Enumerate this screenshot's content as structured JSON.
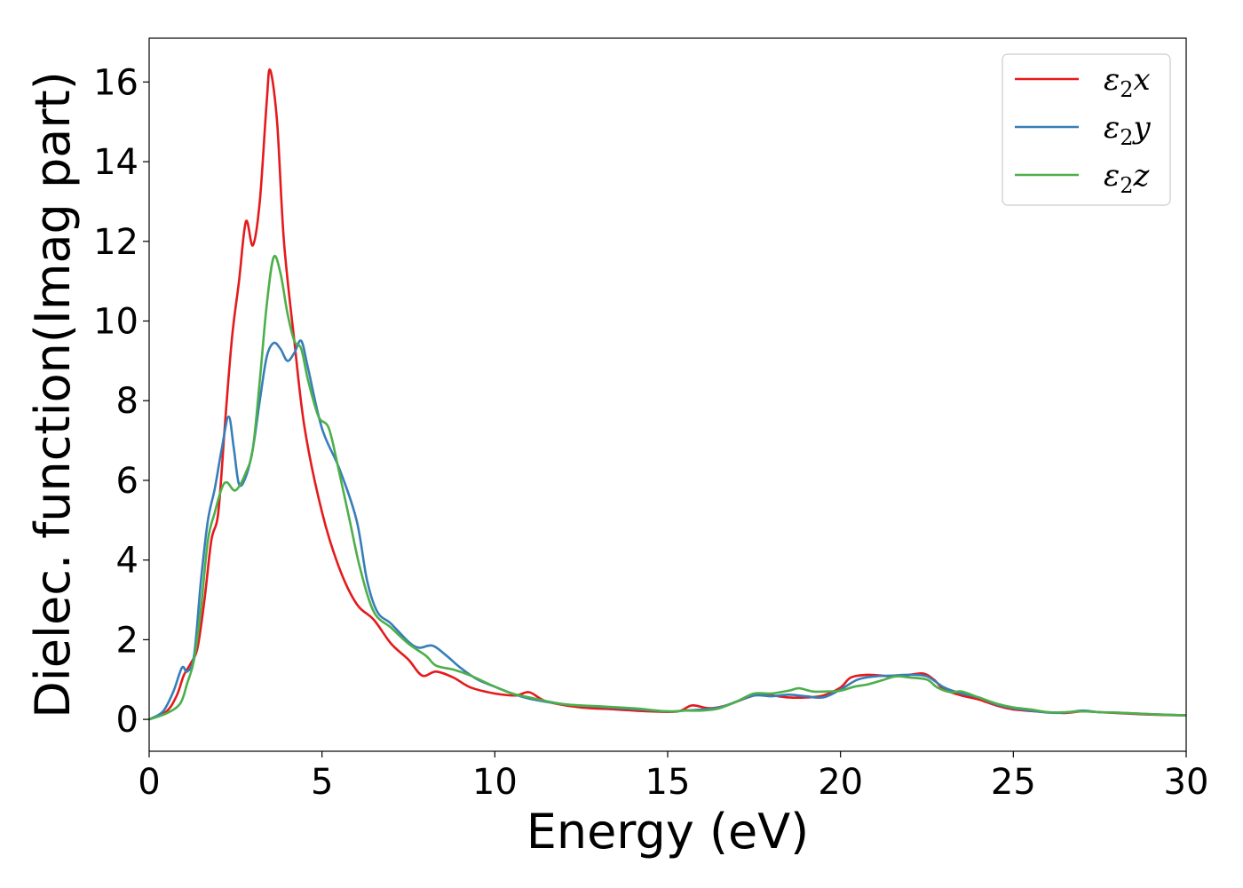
{
  "chart_data": {
    "type": "line",
    "title": "",
    "xlabel": "Energy (eV)",
    "ylabel": "Dielec. function(Imag part)",
    "xlim": [
      0,
      30
    ],
    "ylim": [
      -0.8,
      17.1
    ],
    "xticks": [
      0,
      5,
      10,
      15,
      20,
      25,
      30
    ],
    "yticks": [
      0,
      2,
      4,
      6,
      8,
      10,
      12,
      14,
      16
    ],
    "grid": false,
    "legend_position": "top-right",
    "series": [
      {
        "name": "ε2x",
        "symbol": "ε",
        "subscript": "2",
        "suffix": "x",
        "color": "#e41a1c",
        "points": [
          [
            0,
            0
          ],
          [
            0.5,
            0.2
          ],
          [
            0.8,
            0.6
          ],
          [
            1.0,
            1.1
          ],
          [
            1.2,
            1.4
          ],
          [
            1.4,
            1.8
          ],
          [
            1.6,
            3.0
          ],
          [
            1.8,
            4.5
          ],
          [
            2.0,
            5.2
          ],
          [
            2.2,
            7.5
          ],
          [
            2.4,
            9.6
          ],
          [
            2.6,
            11.0
          ],
          [
            2.8,
            12.5
          ],
          [
            3.0,
            11.9
          ],
          [
            3.2,
            13.0
          ],
          [
            3.4,
            15.5
          ],
          [
            3.5,
            16.3
          ],
          [
            3.7,
            15.0
          ],
          [
            3.9,
            12.0
          ],
          [
            4.2,
            9.5
          ],
          [
            4.5,
            7.3
          ],
          [
            5.0,
            5.2
          ],
          [
            5.5,
            3.8
          ],
          [
            6.0,
            2.9
          ],
          [
            6.5,
            2.5
          ],
          [
            7.0,
            1.9
          ],
          [
            7.5,
            1.5
          ],
          [
            7.9,
            1.1
          ],
          [
            8.3,
            1.2
          ],
          [
            8.8,
            1.05
          ],
          [
            9.3,
            0.8
          ],
          [
            10.0,
            0.65
          ],
          [
            10.6,
            0.6
          ],
          [
            11.0,
            0.68
          ],
          [
            11.5,
            0.45
          ],
          [
            12.5,
            0.3
          ],
          [
            13.5,
            0.25
          ],
          [
            14.5,
            0.2
          ],
          [
            15.3,
            0.2
          ],
          [
            15.7,
            0.35
          ],
          [
            16.2,
            0.28
          ],
          [
            16.7,
            0.35
          ],
          [
            17.5,
            0.6
          ],
          [
            18.0,
            0.6
          ],
          [
            18.5,
            0.55
          ],
          [
            19.0,
            0.55
          ],
          [
            19.5,
            0.6
          ],
          [
            20.0,
            0.8
          ],
          [
            20.3,
            1.05
          ],
          [
            20.8,
            1.12
          ],
          [
            21.5,
            1.08
          ],
          [
            22.0,
            1.12
          ],
          [
            22.4,
            1.15
          ],
          [
            22.7,
            1.0
          ],
          [
            23.0,
            0.75
          ],
          [
            23.5,
            0.6
          ],
          [
            24.0,
            0.5
          ],
          [
            24.5,
            0.35
          ],
          [
            25.0,
            0.25
          ],
          [
            26.0,
            0.18
          ],
          [
            26.5,
            0.16
          ],
          [
            27.0,
            0.2
          ],
          [
            27.5,
            0.18
          ],
          [
            28.0,
            0.16
          ],
          [
            29.0,
            0.12
          ],
          [
            30.0,
            0.1
          ]
        ]
      },
      {
        "name": "ε2y",
        "symbol": "ε",
        "subscript": "2",
        "suffix": "y",
        "color": "#377eb8",
        "points": [
          [
            0,
            0
          ],
          [
            0.4,
            0.2
          ],
          [
            0.7,
            0.7
          ],
          [
            0.95,
            1.3
          ],
          [
            1.1,
            1.2
          ],
          [
            1.3,
            1.6
          ],
          [
            1.5,
            3.5
          ],
          [
            1.7,
            5.0
          ],
          [
            1.9,
            5.8
          ],
          [
            2.1,
            6.8
          ],
          [
            2.3,
            7.6
          ],
          [
            2.45,
            6.8
          ],
          [
            2.6,
            5.9
          ],
          [
            2.8,
            6.1
          ],
          [
            3.0,
            6.8
          ],
          [
            3.2,
            8.0
          ],
          [
            3.4,
            9.1
          ],
          [
            3.6,
            9.45
          ],
          [
            3.8,
            9.3
          ],
          [
            4.0,
            9.0
          ],
          [
            4.2,
            9.2
          ],
          [
            4.4,
            9.5
          ],
          [
            4.6,
            8.8
          ],
          [
            5.0,
            7.3
          ],
          [
            5.5,
            6.3
          ],
          [
            6.0,
            5.0
          ],
          [
            6.3,
            3.5
          ],
          [
            6.6,
            2.7
          ],
          [
            7.0,
            2.4
          ],
          [
            7.5,
            1.95
          ],
          [
            7.8,
            1.8
          ],
          [
            8.2,
            1.85
          ],
          [
            8.6,
            1.6
          ],
          [
            9.0,
            1.3
          ],
          [
            9.5,
            1.0
          ],
          [
            10.0,
            0.82
          ],
          [
            10.5,
            0.65
          ],
          [
            11.0,
            0.52
          ],
          [
            12.0,
            0.38
          ],
          [
            13.0,
            0.32
          ],
          [
            14.0,
            0.26
          ],
          [
            15.0,
            0.2
          ],
          [
            15.5,
            0.22
          ],
          [
            16.0,
            0.25
          ],
          [
            16.5,
            0.3
          ],
          [
            17.0,
            0.45
          ],
          [
            17.5,
            0.6
          ],
          [
            18.0,
            0.58
          ],
          [
            18.5,
            0.62
          ],
          [
            19.0,
            0.58
          ],
          [
            19.5,
            0.55
          ],
          [
            20.0,
            0.75
          ],
          [
            20.5,
            1.0
          ],
          [
            21.0,
            1.08
          ],
          [
            21.5,
            1.1
          ],
          [
            22.0,
            1.12
          ],
          [
            22.5,
            1.08
          ],
          [
            23.0,
            0.8
          ],
          [
            23.5,
            0.65
          ],
          [
            24.0,
            0.55
          ],
          [
            24.5,
            0.38
          ],
          [
            25.0,
            0.28
          ],
          [
            25.5,
            0.22
          ],
          [
            26.0,
            0.17
          ],
          [
            26.5,
            0.17
          ],
          [
            27.0,
            0.22
          ],
          [
            27.5,
            0.18
          ],
          [
            28.0,
            0.17
          ],
          [
            29.0,
            0.13
          ],
          [
            30.0,
            0.1
          ]
        ]
      },
      {
        "name": "ε2z",
        "symbol": "ε",
        "subscript": "2",
        "suffix": "z",
        "color": "#4daf4a",
        "points": [
          [
            0,
            0
          ],
          [
            0.5,
            0.15
          ],
          [
            0.9,
            0.4
          ],
          [
            1.1,
            0.9
          ],
          [
            1.3,
            1.5
          ],
          [
            1.5,
            2.8
          ],
          [
            1.7,
            4.5
          ],
          [
            1.9,
            5.2
          ],
          [
            2.1,
            5.8
          ],
          [
            2.25,
            5.95
          ],
          [
            2.5,
            5.75
          ],
          [
            2.8,
            6.2
          ],
          [
            3.0,
            6.8
          ],
          [
            3.2,
            8.5
          ],
          [
            3.4,
            10.4
          ],
          [
            3.6,
            11.6
          ],
          [
            3.8,
            11.2
          ],
          [
            4.0,
            10.2
          ],
          [
            4.2,
            9.5
          ],
          [
            4.4,
            9.3
          ],
          [
            4.6,
            8.5
          ],
          [
            4.9,
            7.6
          ],
          [
            5.2,
            7.3
          ],
          [
            5.5,
            6.2
          ],
          [
            5.8,
            5.0
          ],
          [
            6.1,
            3.8
          ],
          [
            6.5,
            2.7
          ],
          [
            7.0,
            2.3
          ],
          [
            7.5,
            1.9
          ],
          [
            8.0,
            1.6
          ],
          [
            8.3,
            1.35
          ],
          [
            8.8,
            1.25
          ],
          [
            9.3,
            1.1
          ],
          [
            10.0,
            0.82
          ],
          [
            10.5,
            0.65
          ],
          [
            11.0,
            0.55
          ],
          [
            12.0,
            0.38
          ],
          [
            13.0,
            0.33
          ],
          [
            14.0,
            0.28
          ],
          [
            15.0,
            0.2
          ],
          [
            15.5,
            0.22
          ],
          [
            16.0,
            0.22
          ],
          [
            16.5,
            0.28
          ],
          [
            17.0,
            0.45
          ],
          [
            17.5,
            0.65
          ],
          [
            18.0,
            0.65
          ],
          [
            18.5,
            0.72
          ],
          [
            18.8,
            0.78
          ],
          [
            19.2,
            0.7
          ],
          [
            19.6,
            0.7
          ],
          [
            20.0,
            0.72
          ],
          [
            20.4,
            0.82
          ],
          [
            20.8,
            0.88
          ],
          [
            21.2,
            0.98
          ],
          [
            21.6,
            1.08
          ],
          [
            22.0,
            1.05
          ],
          [
            22.5,
            1.0
          ],
          [
            22.8,
            0.8
          ],
          [
            23.2,
            0.68
          ],
          [
            23.5,
            0.7
          ],
          [
            24.0,
            0.55
          ],
          [
            24.5,
            0.4
          ],
          [
            25.0,
            0.3
          ],
          [
            25.5,
            0.25
          ],
          [
            26.0,
            0.18
          ],
          [
            26.5,
            0.18
          ],
          [
            27.0,
            0.2
          ],
          [
            27.5,
            0.18
          ],
          [
            28.0,
            0.17
          ],
          [
            29.0,
            0.13
          ],
          [
            30.0,
            0.1
          ]
        ]
      }
    ]
  }
}
